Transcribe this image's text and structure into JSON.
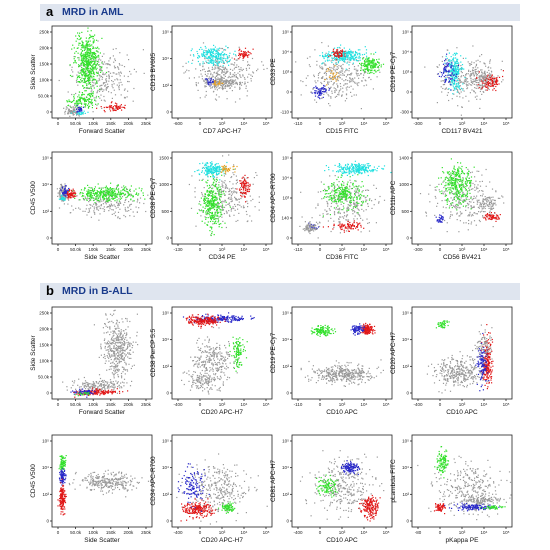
{
  "sections": [
    {
      "letter": "a",
      "title": "MRD in AML",
      "plots": [
        {
          "x_label": "Forward Scatter",
          "y_label": "Side Scatter",
          "x_ticks": [
            "0",
            "50.0k",
            "100k",
            "150k",
            "200k",
            "250k"
          ],
          "y_ticks": [
            "250k",
            "200k",
            "150k",
            "100k",
            "50.0k",
            "0"
          ]
        },
        {
          "x_label": "CD7 APC-H7",
          "y_label": "CD13 BV605",
          "x_ticks": [
            "-600",
            "0",
            "10³",
            "10⁴",
            "10⁵"
          ],
          "y_ticks": [
            "10⁵",
            "10⁴",
            "10³",
            "0"
          ]
        },
        {
          "x_label": "CD15 FITC",
          "y_label": "CD33 PE",
          "x_ticks": [
            "-110",
            "0",
            "10³",
            "10⁴",
            "10⁵"
          ],
          "y_ticks": [
            "10⁵",
            "10⁴",
            "10³",
            "0",
            "-110"
          ]
        },
        {
          "x_label": "CD117 BV421",
          "y_label": "CD19 PE-Cy7",
          "x_ticks": [
            "-300",
            "0",
            "10³",
            "10⁴",
            "10⁵"
          ],
          "y_ticks": [
            "10⁵",
            "10⁴",
            "10³",
            "0",
            "-300"
          ]
        },
        {
          "x_label": "Side Scatter",
          "y_label": "CD45 V500",
          "x_ticks": [
            "0",
            "50.0k",
            "100k",
            "150k",
            "200k",
            "250k"
          ],
          "y_ticks": [
            "10⁵",
            "10⁴",
            "10³",
            "0"
          ]
        },
        {
          "x_label": "CD34 PE",
          "y_label": "CD38 PE-Cy7",
          "x_ticks": [
            "-130",
            "0",
            "10³",
            "10⁴",
            "10⁵"
          ],
          "y_ticks": [
            "1500",
            "1000",
            "500",
            "0"
          ]
        },
        {
          "x_label": "CD36 FITC",
          "y_label": "CD64 APC-R700",
          "x_ticks": [
            "-110",
            "0",
            "10³",
            "10⁴",
            "10⁵"
          ],
          "y_ticks": [
            "10⁵",
            "10⁴",
            "10³",
            "140",
            "0"
          ]
        },
        {
          "x_label": "CD56 BV421",
          "y_label": "CD11b APC",
          "x_ticks": [
            "-300",
            "0",
            "10³",
            "10⁴",
            "10⁵"
          ],
          "y_ticks": [
            "1400",
            "1000",
            "500",
            "0"
          ]
        }
      ]
    },
    {
      "letter": "b",
      "title": "MRD in B-ALL",
      "plots": [
        {
          "x_label": "Forward Scatter",
          "y_label": "Side Scatter",
          "x_ticks": [
            "0",
            "50.0k",
            "100k",
            "150k",
            "200k",
            "250k"
          ],
          "y_ticks": [
            "250k",
            "200k",
            "150k",
            "100k",
            "50.0k",
            "0"
          ]
        },
        {
          "x_label": "CD20 APC-H7",
          "y_label": "CD38 PerCP 5.5",
          "x_ticks": [
            "-400",
            "0",
            "10³",
            "10⁴",
            "10⁵"
          ],
          "y_ticks": [
            "10⁵",
            "10⁴",
            "10³",
            "0"
          ]
        },
        {
          "x_label": "CD10 APC",
          "y_label": "CD19 PE-Cy7",
          "x_ticks": [
            "-110",
            "0",
            "10³",
            "10⁴",
            "10⁵"
          ],
          "y_ticks": [
            "10⁵",
            "10⁴",
            "10³",
            "0"
          ]
        },
        {
          "x_label": "CD10 APC",
          "y_label": "CD20 APC-H7",
          "x_ticks": [
            "-400",
            "0",
            "10³",
            "10⁴",
            "10⁵"
          ],
          "y_ticks": [
            "10⁵",
            "10⁴",
            "10³",
            "0"
          ]
        },
        {
          "x_label": "Side Scatter",
          "y_label": "CD45 V500",
          "x_ticks": [
            "0",
            "50.0k",
            "100k",
            "150k",
            "200k",
            "250k"
          ],
          "y_ticks": [
            "10⁵",
            "10⁴",
            "10³",
            "0"
          ]
        },
        {
          "x_label": "CD20 APC-H7",
          "y_label": "CD34 APC-R700",
          "x_ticks": [
            "-400",
            "0",
            "10³",
            "10⁴",
            "10⁵"
          ],
          "y_ticks": [
            "10⁵",
            "10⁴",
            "10³",
            "0"
          ]
        },
        {
          "x_label": "CD10 APC",
          "y_label": "CD81 APC-H7",
          "x_ticks": [
            "-400",
            "0",
            "10³",
            "10⁴",
            "10⁵"
          ],
          "y_ticks": [
            "10⁵",
            "10⁴",
            "10³",
            "0"
          ]
        },
        {
          "x_label": "pKappa PE",
          "y_label": "pLambda FITC",
          "x_ticks": [
            "-80",
            "0",
            "10³",
            "10⁴",
            "10⁵"
          ],
          "y_ticks": [
            "10⁵",
            "10⁴",
            "10³",
            "0"
          ]
        }
      ]
    }
  ],
  "colors": {
    "grey": "#9a9a9a",
    "green": "#33e02c",
    "cyan": "#22e0e0",
    "red": "#e01818",
    "blue": "#2828c8",
    "orange": "#e8a020",
    "banner": "#dfe5ef",
    "title": "#1a3b8c"
  },
  "plot_icons": "flow-cytometry-dot-plot"
}
